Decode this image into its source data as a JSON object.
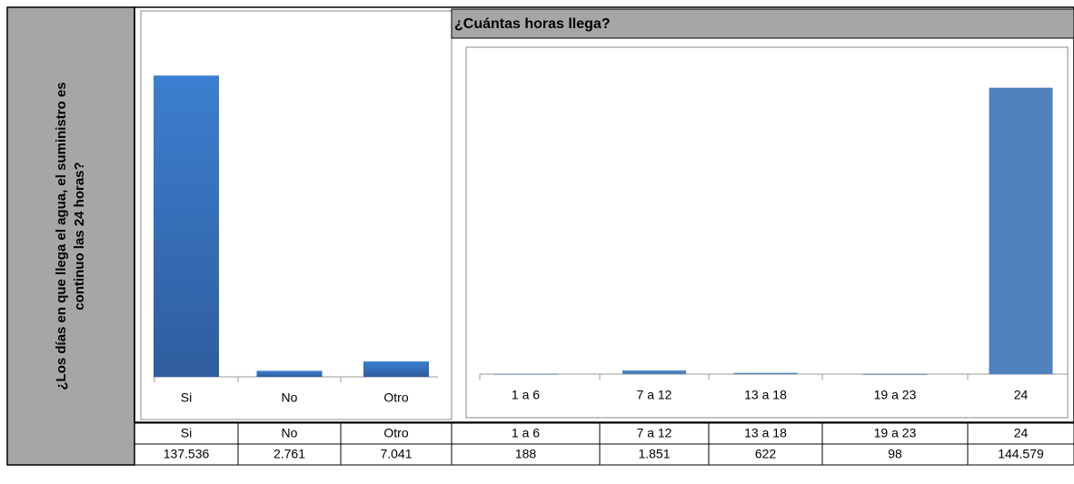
{
  "side_label": [
    "¿Los días en que llega el agua, el suministro es",
    "continuo las 24 horas?"
  ],
  "chart_data": [
    {
      "type": "bar",
      "categories": [
        "Si",
        "No",
        "Otro"
      ],
      "values": [
        137536,
        2761,
        7041
      ],
      "value_labels": [
        "137.536",
        "2.761",
        "7.041"
      ],
      "color": "#3b78c8",
      "ylim": [
        0,
        160000
      ]
    },
    {
      "type": "bar",
      "title": "¿Cuántas horas llega?",
      "categories": [
        "1 a 6",
        "7 a 12",
        "13 a 18",
        "19 a 23",
        "24"
      ],
      "values": [
        188,
        1851,
        622,
        98,
        144579
      ],
      "value_labels": [
        "188",
        "1.851",
        "622",
        "98",
        "144.579"
      ],
      "color": "#4f81bd",
      "ylim": [
        0,
        160000
      ]
    }
  ]
}
